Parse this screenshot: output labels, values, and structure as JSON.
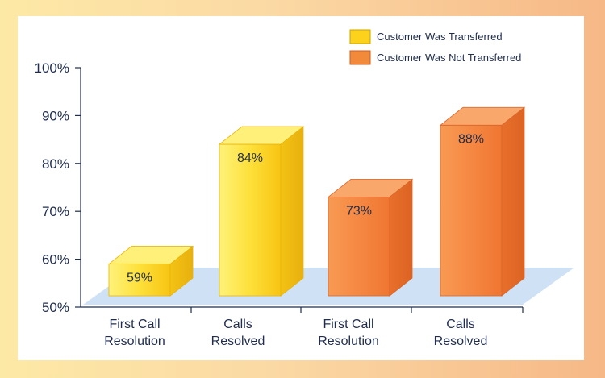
{
  "chart_data": {
    "type": "bar",
    "categories": [
      "First Call Resolution",
      "Calls Resolved",
      "First Call Resolution",
      "Calls Resolved"
    ],
    "category_lines": [
      [
        "First Call",
        "Resolution"
      ],
      [
        "Calls",
        "Resolved"
      ],
      [
        "First Call",
        "Resolution"
      ],
      [
        "Calls",
        "Resolved"
      ]
    ],
    "series": [
      {
        "name": "Customer Was Transferred",
        "color": "#fcd21c",
        "values": [
          59,
          84,
          null,
          null
        ]
      },
      {
        "name": "Customer Was Not Transferred",
        "color": "#f28a3c",
        "values": [
          null,
          null,
          73,
          88
        ]
      }
    ],
    "data_labels": [
      "59%",
      "84%",
      "73%",
      "88%"
    ],
    "y_ticks": [
      "50%",
      "60%",
      "70%",
      "80%",
      "90%",
      "100%"
    ],
    "ylim": [
      50,
      100
    ],
    "legend_position": "top-right",
    "style": "3d-bar",
    "grid": false
  }
}
